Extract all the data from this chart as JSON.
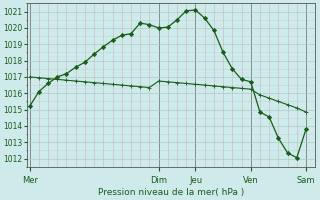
{
  "background_color": "#ceeaea",
  "grid_color_major": "#a8cccc",
  "grid_color_minor": "#c0d8d8",
  "line_color": "#1a5c1a",
  "title": "Pression niveau de la mer( hPa )",
  "ylim": [
    1011.5,
    1021.5
  ],
  "yticks": [
    1012,
    1013,
    1014,
    1015,
    1016,
    1017,
    1018,
    1019,
    1020,
    1021
  ],
  "day_labels": [
    "Mer",
    "Dim",
    "Jeu",
    "Ven",
    "Sam"
  ],
  "day_positions": [
    0,
    14,
    18,
    24,
    30
  ],
  "xlim": [
    -0.3,
    31.0
  ],
  "curve1_x": [
    0,
    1,
    2,
    3,
    4,
    5,
    6,
    7,
    8,
    9,
    10,
    11,
    12,
    13,
    14,
    15,
    16,
    17,
    18,
    19,
    20,
    21,
    22,
    23,
    24,
    25,
    26,
    27,
    28,
    29,
    30
  ],
  "curve1_y": [
    1015.2,
    1016.1,
    1016.6,
    1017.0,
    1017.2,
    1017.6,
    1017.9,
    1018.4,
    1018.85,
    1019.25,
    1019.55,
    1019.65,
    1020.3,
    1020.2,
    1020.0,
    1020.05,
    1020.5,
    1021.05,
    1021.1,
    1020.6,
    1019.85,
    1018.5,
    1017.5,
    1016.85,
    1016.7,
    1014.85,
    1014.55,
    1013.25,
    1012.35,
    1012.05,
    1013.8
  ],
  "curve2_x": [
    0,
    1,
    2,
    3,
    4,
    5,
    6,
    7,
    8,
    9,
    10,
    11,
    12,
    13,
    14,
    15,
    16,
    17,
    18,
    19,
    20,
    21,
    22,
    23,
    24,
    25,
    26,
    27,
    28,
    29,
    30
  ],
  "curve2_y": [
    1017.0,
    1016.95,
    1016.9,
    1016.85,
    1016.8,
    1016.75,
    1016.7,
    1016.65,
    1016.6,
    1016.55,
    1016.5,
    1016.45,
    1016.4,
    1016.35,
    1016.75,
    1016.7,
    1016.65,
    1016.6,
    1016.55,
    1016.5,
    1016.45,
    1016.4,
    1016.35,
    1016.3,
    1016.25,
    1015.9,
    1015.7,
    1015.5,
    1015.3,
    1015.1,
    1014.85
  ]
}
